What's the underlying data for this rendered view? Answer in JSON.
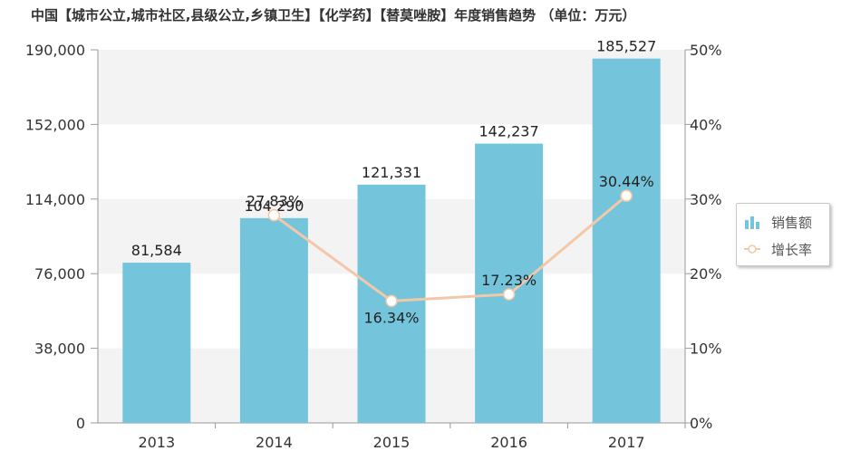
{
  "colors": {
    "bar": "#74c5dc",
    "line": "#f3c8a8",
    "marker_stroke": "#f3c8a8",
    "band": "#f3f3f3",
    "axis": "#999999",
    "text": "#333333"
  },
  "chart_data": {
    "type": "bar",
    "title": "中国【城市公立,城市社区,县级公立,乡镇卫生】【化学药】【替莫唑胺】年度销售趋势 （单位：万元）",
    "categories": [
      "2013",
      "2014",
      "2015",
      "2016",
      "2017"
    ],
    "series": [
      {
        "name": "销售额",
        "type": "bar",
        "values": [
          81584,
          104290,
          121331,
          142237,
          185527
        ],
        "labels": [
          "81,584",
          "104,290",
          "121,331",
          "142,237",
          "185,527"
        ]
      },
      {
        "name": "增长率",
        "type": "line",
        "axis": "right",
        "values": [
          null,
          27.83,
          16.34,
          17.23,
          30.44
        ],
        "labels": [
          "",
          "27.83%",
          "16.34%",
          "17.23%",
          "30.44%"
        ]
      }
    ],
    "y_left": {
      "ylim": [
        0,
        190000
      ],
      "ticks": [
        "0",
        "38,000",
        "76,000",
        "114,000",
        "152,000",
        "190,000"
      ]
    },
    "y_right": {
      "ylim": [
        0,
        50
      ],
      "ticks": [
        "0%",
        "10%",
        "20%",
        "30%",
        "40%",
        "50%"
      ]
    },
    "legend_position": "right",
    "grid": "alternating bands"
  }
}
